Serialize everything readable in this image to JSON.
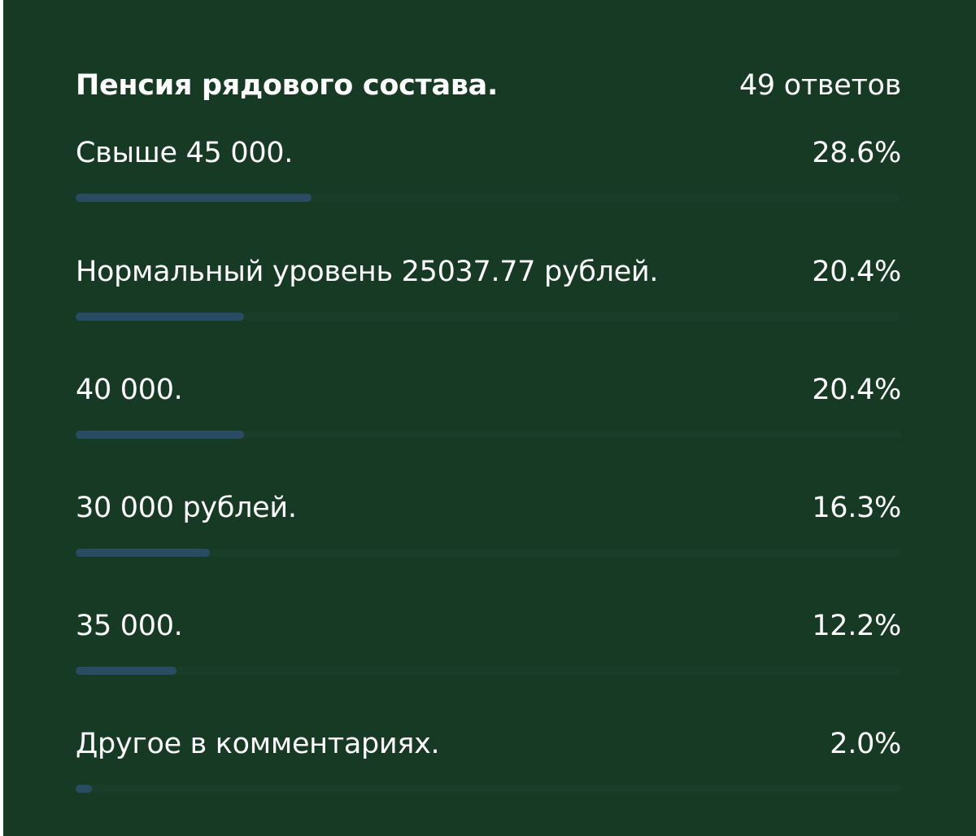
{
  "poll": {
    "title": "Пенсия рядового состава.",
    "responses": "49 ответов",
    "colors": {
      "background": "#163a24",
      "bar": "#294c62",
      "text": "#ffffff"
    },
    "options": [
      {
        "label": "Свыше 45 000.",
        "percent_text": "28.6%",
        "percent": 28.6
      },
      {
        "label": "Нормальный уровень 25037.77 рублей.",
        "percent_text": "20.4%",
        "percent": 20.4
      },
      {
        "label": "40 000.",
        "percent_text": "20.4%",
        "percent": 20.4
      },
      {
        "label": "30 000 рублей.",
        "percent_text": "16.3%",
        "percent": 16.3
      },
      {
        "label": "35 000.",
        "percent_text": "12.2%",
        "percent": 12.2
      },
      {
        "label": "Другое в комментариях.",
        "percent_text": "2.0%",
        "percent": 2.0
      }
    ]
  }
}
